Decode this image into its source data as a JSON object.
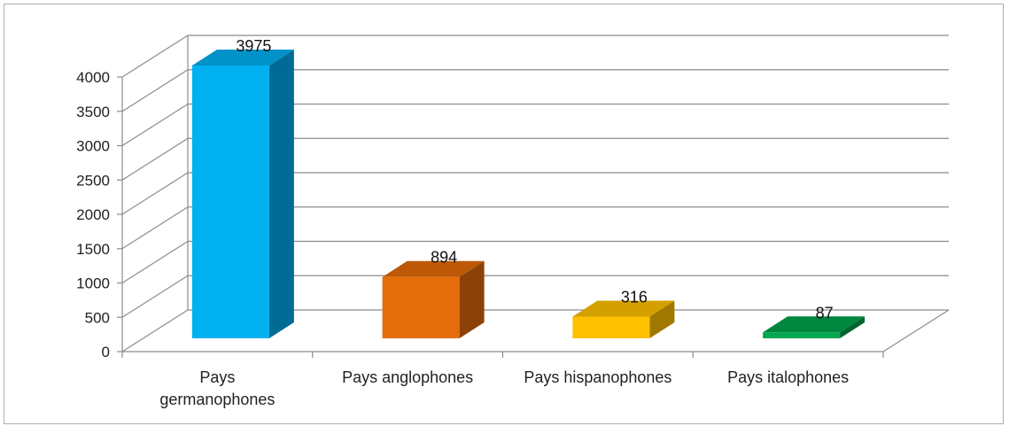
{
  "chart_data": {
    "type": "bar",
    "style": "3d-column",
    "categories": [
      "Pays germanophones",
      "Pays anglophones",
      "Pays hispanophones",
      "Pays italophones"
    ],
    "category_lines": [
      [
        "Pays",
        "germanophones"
      ],
      [
        "Pays anglophones"
      ],
      [
        "Pays hispanophones"
      ],
      [
        "Pays italophones"
      ]
    ],
    "values": [
      3975,
      894,
      316,
      87
    ],
    "data_labels": [
      "3975",
      "894",
      "316",
      "87"
    ],
    "colors": [
      {
        "front": "#00b0f0",
        "top": "#0092c8",
        "side": "#006c96"
      },
      {
        "front": "#e46c0a",
        "top": "#bc5807",
        "side": "#8c4106"
      },
      {
        "front": "#ffc000",
        "top": "#d4a000",
        "side": "#a07800"
      },
      {
        "front": "#00a650",
        "top": "#00873f",
        "side": "#006530"
      }
    ],
    "ylim": [
      0,
      4000
    ],
    "yticks": [
      0,
      500,
      1000,
      1500,
      2000,
      2500,
      3000,
      3500,
      4000
    ],
    "grid": true,
    "legend": "none",
    "title": "",
    "xlabel": "",
    "ylabel": ""
  }
}
